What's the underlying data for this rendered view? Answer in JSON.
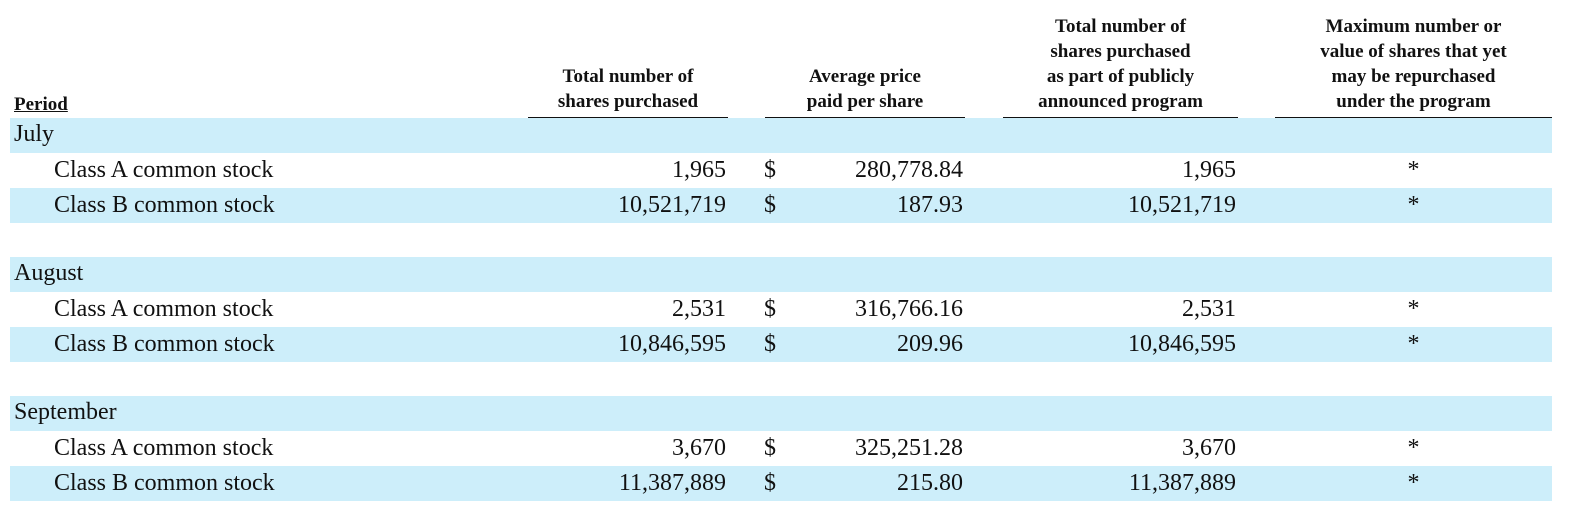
{
  "header": {
    "period": "Period",
    "columns": [
      {
        "lines": [
          "Total number of",
          "shares purchased"
        ]
      },
      {
        "lines": [
          "Average price",
          "paid per share"
        ]
      },
      {
        "lines": [
          "Total number of",
          "shares purchased",
          "as part of publicly",
          "announced program"
        ]
      },
      {
        "lines": [
          "Maximum number or",
          "value of shares that yet",
          "may be repurchased",
          "under the program"
        ]
      }
    ]
  },
  "groups": [
    {
      "period": "July",
      "rows": [
        {
          "label": "Class A common stock",
          "shares": "1,965",
          "currency": "$",
          "price": "280,778.84",
          "program_shares": "1,965",
          "remaining": "*"
        },
        {
          "label": "Class B common stock",
          "shares": "10,521,719",
          "currency": "$",
          "price": "187.93",
          "program_shares": "10,521,719",
          "remaining": "*"
        }
      ]
    },
    {
      "period": "August",
      "rows": [
        {
          "label": "Class A common stock",
          "shares": "2,531",
          "currency": "$",
          "price": "316,766.16",
          "program_shares": "2,531",
          "remaining": "*"
        },
        {
          "label": "Class B common stock",
          "shares": "10,846,595",
          "currency": "$",
          "price": "209.96",
          "program_shares": "10,846,595",
          "remaining": "*"
        }
      ]
    },
    {
      "period": "September",
      "rows": [
        {
          "label": "Class A common stock",
          "shares": "3,670",
          "currency": "$",
          "price": "325,251.28",
          "program_shares": "3,670",
          "remaining": "*"
        },
        {
          "label": "Class B common stock",
          "shares": "11,387,889",
          "currency": "$",
          "price": "215.80",
          "program_shares": "11,387,889",
          "remaining": "*"
        }
      ]
    }
  ]
}
